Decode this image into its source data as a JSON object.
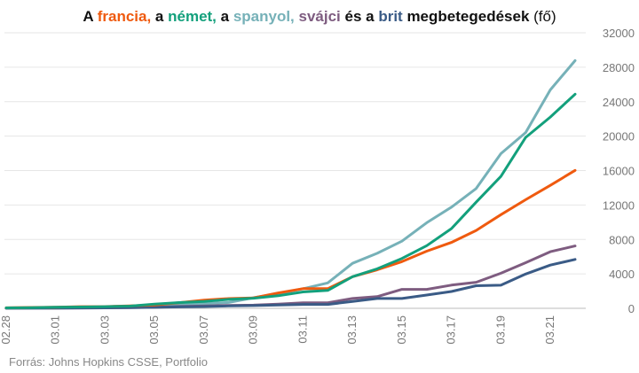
{
  "chart_data": {
    "type": "line",
    "title_parts": [
      {
        "text": "A ",
        "color": "#111111"
      },
      {
        "text": "francia,",
        "color": "#ef5a0f"
      },
      {
        "text": " a ",
        "color": "#111111"
      },
      {
        "text": "német,",
        "color": "#13a07c"
      },
      {
        "text": " a ",
        "color": "#111111"
      },
      {
        "text": "spanyol,",
        "color": "#76b1b8"
      },
      {
        "text": " ",
        "color": "#111111"
      },
      {
        "text": "svájci",
        "color": "#7e5c80"
      },
      {
        "text": " és a ",
        "color": "#111111"
      },
      {
        "text": "brit",
        "color": "#3a5b86"
      },
      {
        "text": " megbetegedések",
        "color": "#111111"
      },
      {
        "text": " (fő)",
        "color": "#111111",
        "bold": false
      }
    ],
    "x": [
      "02.28",
      "02.29",
      "03.01",
      "03.02",
      "03.03",
      "03.04",
      "03.05",
      "03.06",
      "03.07",
      "03.08",
      "03.09",
      "03.10",
      "03.11",
      "03.12",
      "03.13",
      "03.14",
      "03.15",
      "03.16",
      "03.17",
      "03.18",
      "03.19",
      "03.20",
      "03.21",
      "03.22"
    ],
    "x_tick_labels": [
      "02.28",
      "03.01",
      "03.03",
      "03.05",
      "03.07",
      "03.09",
      "03.11",
      "03.13",
      "03.15",
      "03.17",
      "03.19",
      "03.21"
    ],
    "ylim": [
      0,
      32000
    ],
    "y_ticks": [
      "0",
      "4000",
      "8000",
      "12000",
      "16000",
      "20000",
      "24000",
      "28000",
      "32000"
    ],
    "y_axis_position": "right",
    "grid": true,
    "series": [
      {
        "name": "spanyol",
        "color": "#76b1b8",
        "values": [
          32,
          45,
          84,
          120,
          165,
          228,
          282,
          401,
          525,
          674,
          1231,
          1695,
          2277,
          2950,
          5232,
          6391,
          7798,
          9942,
          11748,
          13910,
          17963,
          20410,
          25374,
          28768
        ]
      },
      {
        "name": "svájci",
        "color": "#7e5c80",
        "values": [
          8,
          18,
          27,
          42,
          56,
          90,
          114,
          214,
          268,
          337,
          374,
          491,
          652,
          652,
          1139,
          1359,
          2200,
          2200,
          2700,
          3028,
          4075,
          5294,
          6575,
          7245
        ]
      },
      {
        "name": "brit",
        "color": "#3a5b86",
        "values": [
          23,
          23,
          36,
          40,
          51,
          85,
          115,
          163,
          206,
          273,
          321,
          382,
          456,
          456,
          798,
          1140,
          1140,
          1543,
          1950,
          2626,
          2689,
          3983,
          5018,
          5683
        ]
      },
      {
        "name": "francia",
        "color": "#ef5a0f",
        "values": [
          57,
          100,
          130,
          191,
          204,
          288,
          380,
          656,
          957,
          1134,
          1217,
          1792,
          2289,
          2289,
          3672,
          4480,
          5423,
          6633,
          7652,
          9043,
          10871,
          12612,
          14282,
          16018
        ]
      },
      {
        "name": "német",
        "color": "#13a07c",
        "values": [
          48,
          79,
          130,
          159,
          196,
          262,
          482,
          670,
          799,
          1040,
          1176,
          1457,
          1908,
          2078,
          3675,
          4585,
          5795,
          7272,
          9257,
          12327,
          15320,
          19848,
          22213,
          24873
        ]
      }
    ]
  },
  "source": "Forrás: Johns Hopkins CSSE, Portfolio"
}
